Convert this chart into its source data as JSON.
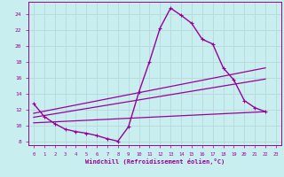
{
  "background_color": "#c8eef0",
  "grid_color": "#aaaaaa",
  "line_color": "#990099",
  "xlabel": "Windchill (Refroidissement éolien,°C)",
  "xlim": [
    -0.5,
    23.5
  ],
  "ylim": [
    7.5,
    25.5
  ],
  "yticks": [
    8,
    10,
    12,
    14,
    16,
    18,
    20,
    22,
    24
  ],
  "xticks": [
    0,
    1,
    2,
    3,
    4,
    5,
    6,
    7,
    8,
    9,
    10,
    11,
    12,
    13,
    14,
    15,
    16,
    17,
    18,
    19,
    20,
    21,
    22,
    23
  ],
  "series": [
    {
      "x": [
        0,
        1,
        2,
        3,
        4,
        5,
        6,
        7,
        8,
        9,
        10,
        11,
        12,
        13,
        14,
        15,
        16,
        17,
        18,
        19,
        20,
        21,
        22
      ],
      "y": [
        12.7,
        11.1,
        10.2,
        9.5,
        9.2,
        9.0,
        8.7,
        8.3,
        8.0,
        9.8,
        14.2,
        18.0,
        22.2,
        24.7,
        23.8,
        22.8,
        20.8,
        20.2,
        17.2,
        15.7,
        13.1,
        12.2,
        11.7
      ],
      "marker": "+",
      "markersize": 3.5,
      "linewidth": 1.0
    },
    {
      "x": [
        0,
        22
      ],
      "y": [
        11.5,
        17.2
      ],
      "marker": null,
      "linewidth": 0.9
    },
    {
      "x": [
        0,
        22
      ],
      "y": [
        11.0,
        15.8
      ],
      "marker": null,
      "linewidth": 0.9
    },
    {
      "x": [
        0,
        22
      ],
      "y": [
        10.3,
        11.7
      ],
      "marker": null,
      "linewidth": 0.9
    }
  ]
}
